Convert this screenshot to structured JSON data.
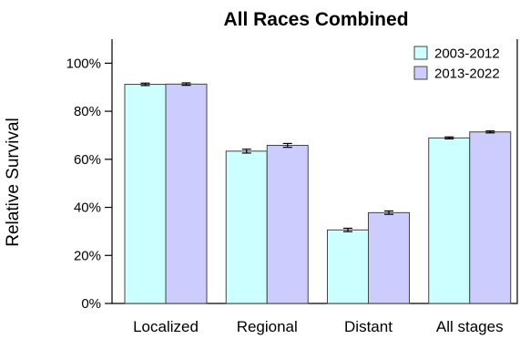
{
  "chart_data": {
    "type": "bar",
    "title": "All Races Combined",
    "xlabel": "",
    "ylabel": "Relative Survival",
    "ylim": [
      0,
      110
    ],
    "y_ticks": [
      0,
      20,
      40,
      60,
      80,
      100
    ],
    "y_tick_labels": [
      "0%",
      "20%",
      "40%",
      "60%",
      "80%",
      "100%"
    ],
    "grid": false,
    "legend_position": "top-right",
    "categories": [
      "Localized",
      "Regional",
      "Distant",
      "All stages"
    ],
    "series": [
      {
        "name": "2003-2012",
        "color": "#ccffff",
        "values": [
          91.2,
          63.4,
          30.6,
          68.9
        ],
        "error": [
          0.5,
          0.8,
          0.7,
          0.4
        ]
      },
      {
        "name": "2013-2022",
        "color": "#ccccff",
        "values": [
          91.3,
          65.8,
          37.8,
          71.4
        ],
        "error": [
          0.5,
          0.8,
          0.7,
          0.4
        ]
      }
    ]
  }
}
